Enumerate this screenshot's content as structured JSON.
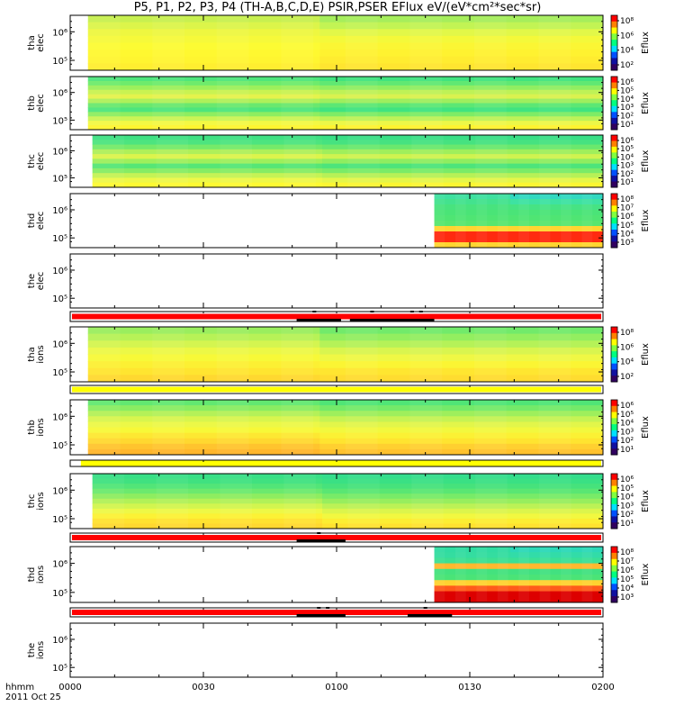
{
  "title": "P5, P1, P2, P3, P4 (TH-A,B,C,D,E) PSIR,PSER EFlux eV/(eV*cm²*sec*sr)",
  "colors": {
    "red": "#ff0000",
    "yellow": "#ffff00",
    "black": "#000000",
    "panel_bg": "#ffffff"
  },
  "x_axis": {
    "row_label": "hhmm",
    "date_label": "2011 Oct 25",
    "ticks": [
      "0000",
      "0030",
      "0100",
      "0130",
      "0200"
    ]
  },
  "chart_data": {
    "type": "heatmap",
    "title": "P5, P1, P2, P3, P4 (TH-A,B,C,D,E) PSIR,PSER EFlux eV/(eV*cm²*sec*sr)",
    "x_range_hhmm": [
      "0000",
      "0200"
    ],
    "panels": [
      {
        "kind": "spec",
        "name": "tha-elec",
        "ylabel": [
          "tha",
          "elec"
        ],
        "yticks": [
          "10⁶",
          "10⁵"
        ],
        "data_start": "0004",
        "data_end": "0200",
        "cbar_label": "Eflux",
        "cbar_ticks": [
          "10⁸",
          "10⁶",
          "10⁴",
          "10²"
        ],
        "rows": [
          "#c8f050",
          "#dcf54a",
          "#eef740",
          "#f6f93a",
          "#fcfb33",
          "#fff830",
          "#fff530",
          "#ffef30"
        ],
        "right_rows": [
          "#a6ee5c",
          "#c2f454",
          "#e2f848",
          "#f4f93a",
          "#fbf634",
          "#fff230",
          "#ffec30",
          "#ffe530"
        ],
        "fade": [
          {
            "from": "0030",
            "to": "0122",
            "col": "#e8f84a"
          }
        ]
      },
      {
        "kind": "spec",
        "name": "thb-elec",
        "ylabel": [
          "thb",
          "elec"
        ],
        "yticks": [
          "10⁶",
          "10⁵"
        ],
        "data_start": "0004",
        "data_end": "0200",
        "cbar_label": "Eflux",
        "cbar_ticks": [
          "10⁶",
          "10⁵",
          "10⁴",
          "10³",
          "10²",
          "10¹"
        ],
        "rows": [
          "#4ee57c",
          "#6eeb6c",
          "#9cf05c",
          "#c9f352",
          "#e5f34c",
          "#aef05a",
          "#6ae86e",
          "#4ee57c",
          "#8eee60",
          "#cbf455",
          "#f3f844",
          "#fff530"
        ],
        "right_rows": [
          "#40e380",
          "#60e873",
          "#90ee62",
          "#bef257",
          "#daf24f",
          "#9eee5e",
          "#5ce774",
          "#40e380",
          "#7eec66",
          "#bdf258",
          "#ecf748",
          "#fff330"
        ],
        "fade": []
      },
      {
        "kind": "spec",
        "name": "thc-elec",
        "ylabel": [
          "thc",
          "elec"
        ],
        "yticks": [
          "10⁶",
          "10⁵"
        ],
        "data_start": "0005",
        "data_end": "0200",
        "cbar_label": "Eflux",
        "cbar_ticks": [
          "10⁶",
          "10⁵",
          "10⁴",
          "10³",
          "10²",
          "10¹"
        ],
        "rows": [
          "#3fe183",
          "#4de47f",
          "#75ea6a",
          "#aef05a",
          "#dcf44c",
          "#9eef5c",
          "#56e676",
          "#86ec64",
          "#c5f355",
          "#eef848",
          "#fdfa33"
        ],
        "right_rows": [
          "#39df86",
          "#46e280",
          "#6ae86e",
          "#9fef5c",
          "#cff350",
          "#8fed60",
          "#4de47b",
          "#7aeb68",
          "#b7f157",
          "#e5f64a",
          "#fbf633"
        ],
        "fade": []
      },
      {
        "kind": "spec",
        "name": "thd-elec",
        "ylabel": [
          "thd",
          "elec"
        ],
        "yticks": [
          "10⁶",
          "10⁵"
        ],
        "data_start": "0122",
        "data_end": "0200",
        "cbar_label": "Eflux",
        "cbar_ticks": [
          "10⁸",
          "10⁷",
          "10⁶",
          "10⁵",
          "10⁴",
          "10³"
        ],
        "rows": [
          "#3fe0a0",
          "#43e28e",
          "#48e37e",
          "#4ae477",
          "#4fe573",
          "#58e66e",
          "#ffd530",
          "#ff2a10",
          "#ff2a10",
          "#ffd530"
        ],
        "right_rows": [
          "#32d8c0",
          "#3ee2a2",
          "#46e384",
          "#4ae478",
          "#4fe573",
          "#58e66e",
          "#ffd530",
          "#ff2a10",
          "#ff2a10",
          "#ffd530"
        ],
        "fade": []
      },
      {
        "kind": "spec",
        "name": "the-elec",
        "ylabel": [
          "the",
          "elec"
        ],
        "yticks": [
          "10⁶",
          "10⁵"
        ],
        "data_start": null,
        "data_end": null,
        "cbar_label": "",
        "cbar_ticks": [],
        "rows": [],
        "right_rows": [],
        "fade": []
      },
      {
        "kind": "bar",
        "name": "bar-a",
        "color": "#ff0000",
        "segments": [
          {
            "from": "0000",
            "to": "0200"
          }
        ],
        "black": [
          {
            "from": "0051",
            "to": "0101"
          },
          {
            "from": "0103",
            "to": "0122"
          }
        ],
        "ticks": [
          "0055",
          "0108",
          "0117",
          "0119"
        ]
      },
      {
        "kind": "spec",
        "name": "tha-ions",
        "ylabel": [
          "tha",
          "ions"
        ],
        "yticks": [
          "10⁶",
          "10⁵"
        ],
        "data_start": "0004",
        "data_end": "0200",
        "cbar_label": "Eflux",
        "cbar_ticks": [
          "10⁸",
          "10⁶",
          "10⁴",
          "10²"
        ],
        "rows": [
          "#9aee5e",
          "#b7f257",
          "#d4f550",
          "#ecf846",
          "#f7f938",
          "#fcf033",
          "#ffe530",
          "#ffd830"
        ],
        "right_rows": [
          "#72ea6b",
          "#93ee60",
          "#b5f258",
          "#d9f54f",
          "#eff845",
          "#fbf533",
          "#ffe630",
          "#ffdc30"
        ],
        "fade": []
      },
      {
        "kind": "bar",
        "name": "bar-b",
        "color": "#ffff00",
        "segments": [
          {
            "from": "0000",
            "to": "0200"
          }
        ],
        "black": [],
        "ticks": []
      },
      {
        "kind": "spec",
        "name": "thb-ions",
        "ylabel": [
          "thb",
          "ions"
        ],
        "yticks": [
          "10⁶",
          "10⁵"
        ],
        "data_start": "0004",
        "data_end": "0200",
        "cbar_label": "Eflux",
        "cbar_ticks": [
          "10⁶",
          "10⁵",
          "10⁴",
          "10³",
          "10²",
          "10¹"
        ],
        "rows": [
          "#62e871",
          "#8aed62",
          "#b4f158",
          "#d8f54e",
          "#ecf847",
          "#f7f838",
          "#fde832",
          "#ffd830",
          "#ffc42e",
          "#ffb62c"
        ],
        "right_rows": [
          "#50e576",
          "#74ea69",
          "#9eef5c",
          "#c6f354",
          "#e2f64a",
          "#f2f83e",
          "#fbf134",
          "#ffe430",
          "#ffd030",
          "#ffc22e"
        ],
        "fade": []
      },
      {
        "kind": "bar",
        "name": "bar-c",
        "color": "#ffff00",
        "segments": [
          {
            "from": "0002",
            "to": "0200"
          }
        ],
        "black": [],
        "ticks": []
      },
      {
        "kind": "spec",
        "name": "thc-ions",
        "ylabel": [
          "thc",
          "ions"
        ],
        "yticks": [
          "10⁶",
          "10⁵"
        ],
        "data_start": "0005",
        "data_end": "0200",
        "cbar_label": "Eflux",
        "cbar_ticks": [
          "10⁶",
          "10⁵",
          "10⁴",
          "10³",
          "10²",
          "10¹"
        ],
        "rows": [
          "#38df86",
          "#40e180",
          "#52e578",
          "#6ce96e",
          "#8eed60",
          "#b2f158",
          "#d2f54f",
          "#eef846",
          "#fcf235",
          "#ffe230",
          "#ffd830"
        ],
        "right_rows": [
          "#34dd8c",
          "#3ae084",
          "#46e27c",
          "#5ae673",
          "#78eb68",
          "#98ee5e",
          "#bcf256",
          "#dcf54c",
          "#f2f840",
          "#fcee33",
          "#ffe230"
        ],
        "fade": []
      },
      {
        "kind": "bar",
        "name": "bar-d",
        "color": "#ff0000",
        "segments": [
          {
            "from": "0000",
            "to": "0200"
          }
        ],
        "black": [
          {
            "from": "0051",
            "to": "0102"
          }
        ],
        "ticks": [
          "0056"
        ]
      },
      {
        "kind": "spec",
        "name": "thd-ions",
        "ylabel": [
          "thd",
          "ions"
        ],
        "yticks": [
          "10⁶",
          "10⁵"
        ],
        "data_start": "0122",
        "data_end": "0200",
        "cbar_label": "Eflux",
        "cbar_ticks": [
          "10⁸",
          "10⁷",
          "10⁶",
          "10⁵",
          "10⁴",
          "10³"
        ],
        "rows": [
          "#30dca2",
          "#34dda0",
          "#3ce092",
          "#ffb82e",
          "#44e27e",
          "#4ae477",
          "#ffd230",
          "#ff5a1a",
          "#dd0000",
          "#dd0000"
        ],
        "right_rows": [
          "#2cd8b8",
          "#32dca8",
          "#3ae096",
          "#ffb82e",
          "#42e180",
          "#4ae477",
          "#ffd230",
          "#ff5a1a",
          "#dd0000",
          "#dd0000"
        ],
        "fade": []
      },
      {
        "kind": "bar",
        "name": "bar-e",
        "color": "#ff0000",
        "segments": [
          {
            "from": "0000",
            "to": "0200"
          }
        ],
        "black": [
          {
            "from": "0051",
            "to": "0102"
          },
          {
            "from": "0116",
            "to": "0126"
          }
        ],
        "ticks": [
          "0056",
          "0058",
          "0120"
        ]
      },
      {
        "kind": "spec",
        "name": "the-ions",
        "ylabel": [
          "the",
          "ions"
        ],
        "yticks": [
          "10⁶",
          "10⁵"
        ],
        "data_start": null,
        "data_end": null,
        "cbar_label": "",
        "cbar_ticks": [],
        "rows": [],
        "right_rows": [],
        "fade": []
      }
    ]
  }
}
